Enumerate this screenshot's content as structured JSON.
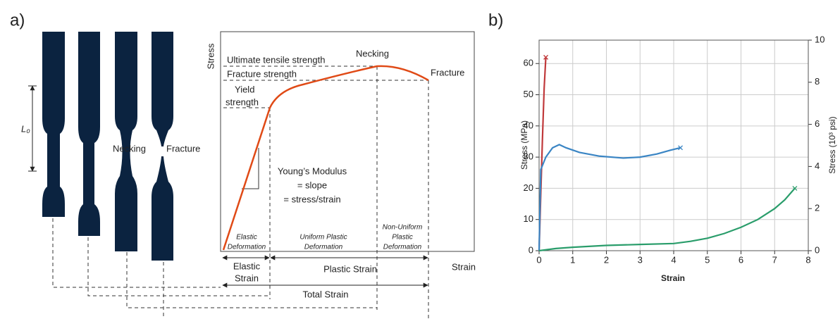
{
  "panel_labels": [
    "a)",
    "b)"
  ],
  "panel_a": {
    "specimen_labels": {
      "gauge_length": "L₀",
      "necking": "Necking",
      "fracture": "Fracture"
    },
    "axes": {
      "y": "Stress",
      "x": "Strain"
    },
    "curve_labels": {
      "ultimate": "Ultimate tensile strength",
      "necking": "Necking",
      "fracture_strength": "Fracture strength",
      "fracture": "Fracture",
      "yield": [
        "Yield",
        "strength"
      ]
    },
    "modulus": [
      "Young’s Modulus",
      "= slope",
      "= stress/strain"
    ],
    "regions": {
      "elastic": [
        "Elastic",
        "Deformation"
      ],
      "uniform": [
        "Uniform Plastic",
        "Deformation"
      ],
      "non_uniform": [
        "Non-Uniform",
        "Plastic",
        "Deformation"
      ]
    },
    "strains": {
      "elastic": [
        "Elastic",
        "Strain"
      ],
      "plastic": "Plastic Strain",
      "total": "Total Strain"
    }
  },
  "chart_data": {
    "type": "line",
    "xlabel": "Strain",
    "ylabel": "Stress (MPa)",
    "y2label": "Stress (10³ psi)",
    "xlim": [
      0,
      8
    ],
    "xticks": [
      0,
      1,
      2,
      3,
      4,
      5,
      6,
      7,
      8
    ],
    "ylim": [
      0,
      67.5
    ],
    "yticks": [
      0,
      10,
      20,
      30,
      40,
      50,
      60
    ],
    "y2lim": [
      0,
      10
    ],
    "y2ticks": [
      0,
      2,
      4,
      6,
      8,
      10
    ],
    "grid": true,
    "end_marker": "x",
    "series": [
      {
        "color": "#c0393b",
        "x": [
          0,
          0.05,
          0.1,
          0.15,
          0.2
        ],
        "values": [
          0,
          18,
          36,
          52,
          62
        ]
      },
      {
        "color": "#3a85c4",
        "x": [
          0,
          0.05,
          0.2,
          0.4,
          0.6,
          0.8,
          1.2,
          1.8,
          2.5,
          3.0,
          3.5,
          3.9,
          4.2
        ],
        "values": [
          0,
          26,
          30,
          33,
          34,
          33,
          31.5,
          30.3,
          29.7,
          30,
          31,
          32.2,
          33
        ]
      },
      {
        "color": "#2a9d6b",
        "x": [
          0,
          0.5,
          1,
          2,
          3,
          4,
          4.5,
          5,
          5.5,
          6,
          6.5,
          7,
          7.3,
          7.6
        ],
        "values": [
          0,
          0.7,
          1.1,
          1.7,
          2,
          2.3,
          3,
          4,
          5.5,
          7.5,
          10,
          13.5,
          16.3,
          20
        ]
      }
    ]
  }
}
